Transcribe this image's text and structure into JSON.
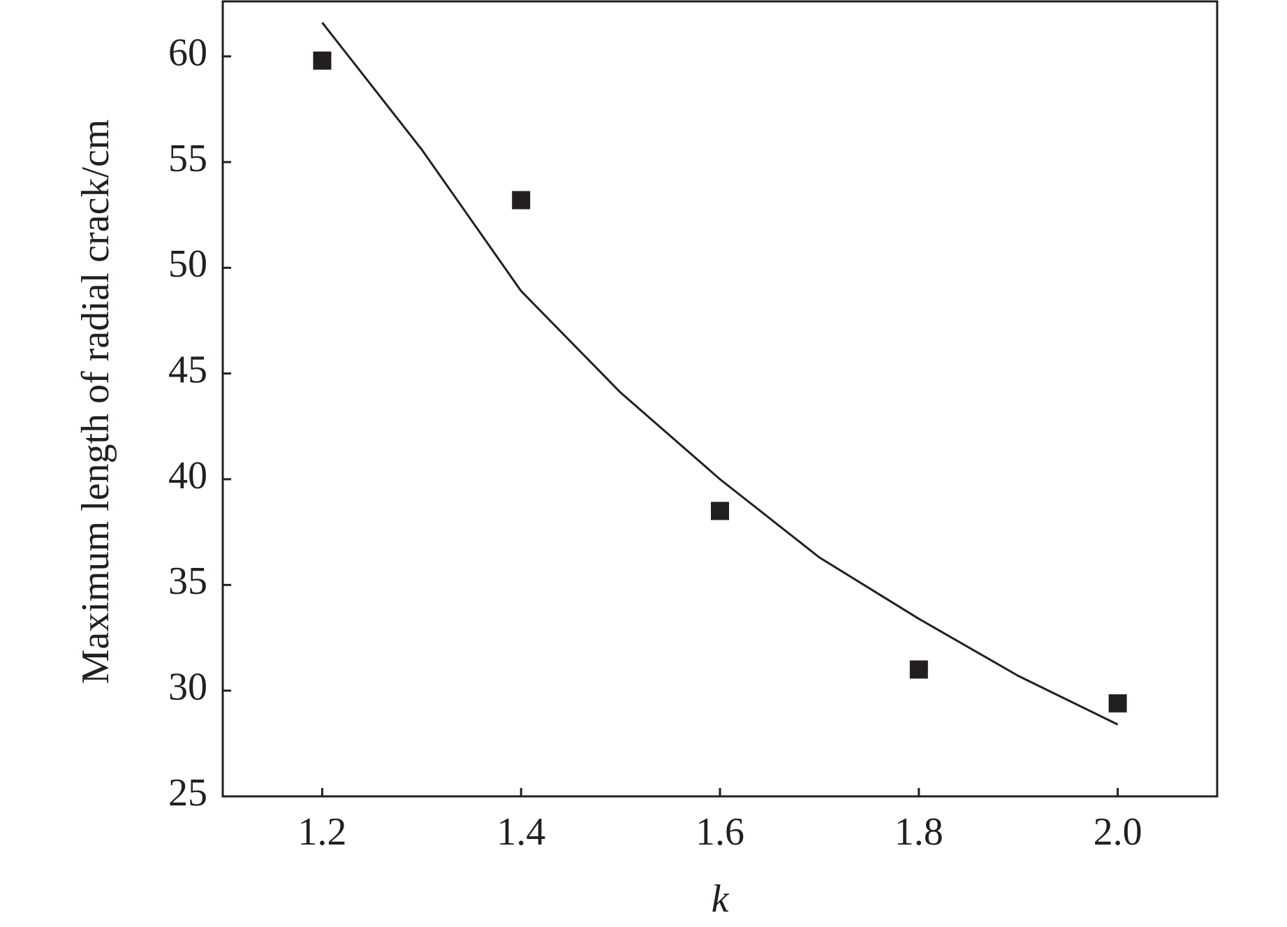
{
  "chart_data": {
    "type": "scatter",
    "y_label": "Maximum length of radial crack/cm",
    "x_label": "k",
    "xlim": [
      1.1,
      2.1
    ],
    "xticks": [
      {
        "value": 1.2,
        "label": "1.2"
      },
      {
        "value": 1.4,
        "label": "1.4"
      },
      {
        "value": 1.6,
        "label": "1.6"
      },
      {
        "value": 1.8,
        "label": "1.8"
      },
      {
        "value": 2.0,
        "label": "2.0"
      }
    ],
    "ylim": [
      25,
      62.6
    ],
    "yticks": [
      25,
      30,
      35,
      40,
      45,
      50,
      55,
      60
    ],
    "series": [
      {
        "type": "scatter",
        "color": "#231f20",
        "x": [
          1.2,
          1.4,
          1.6,
          1.8,
          2.0
        ],
        "values": [
          59.8,
          53.2,
          38.5,
          31.0,
          29.4
        ]
      },
      {
        "type": "line",
        "color": "#231f20",
        "x": [
          1.2,
          1.3,
          1.4,
          1.5,
          1.6,
          1.7,
          1.8,
          1.9,
          2.0
        ],
        "values": [
          61.6,
          55.6,
          48.9,
          44.1,
          40.0,
          36.3,
          33.4,
          30.7,
          28.4
        ]
      }
    ]
  }
}
